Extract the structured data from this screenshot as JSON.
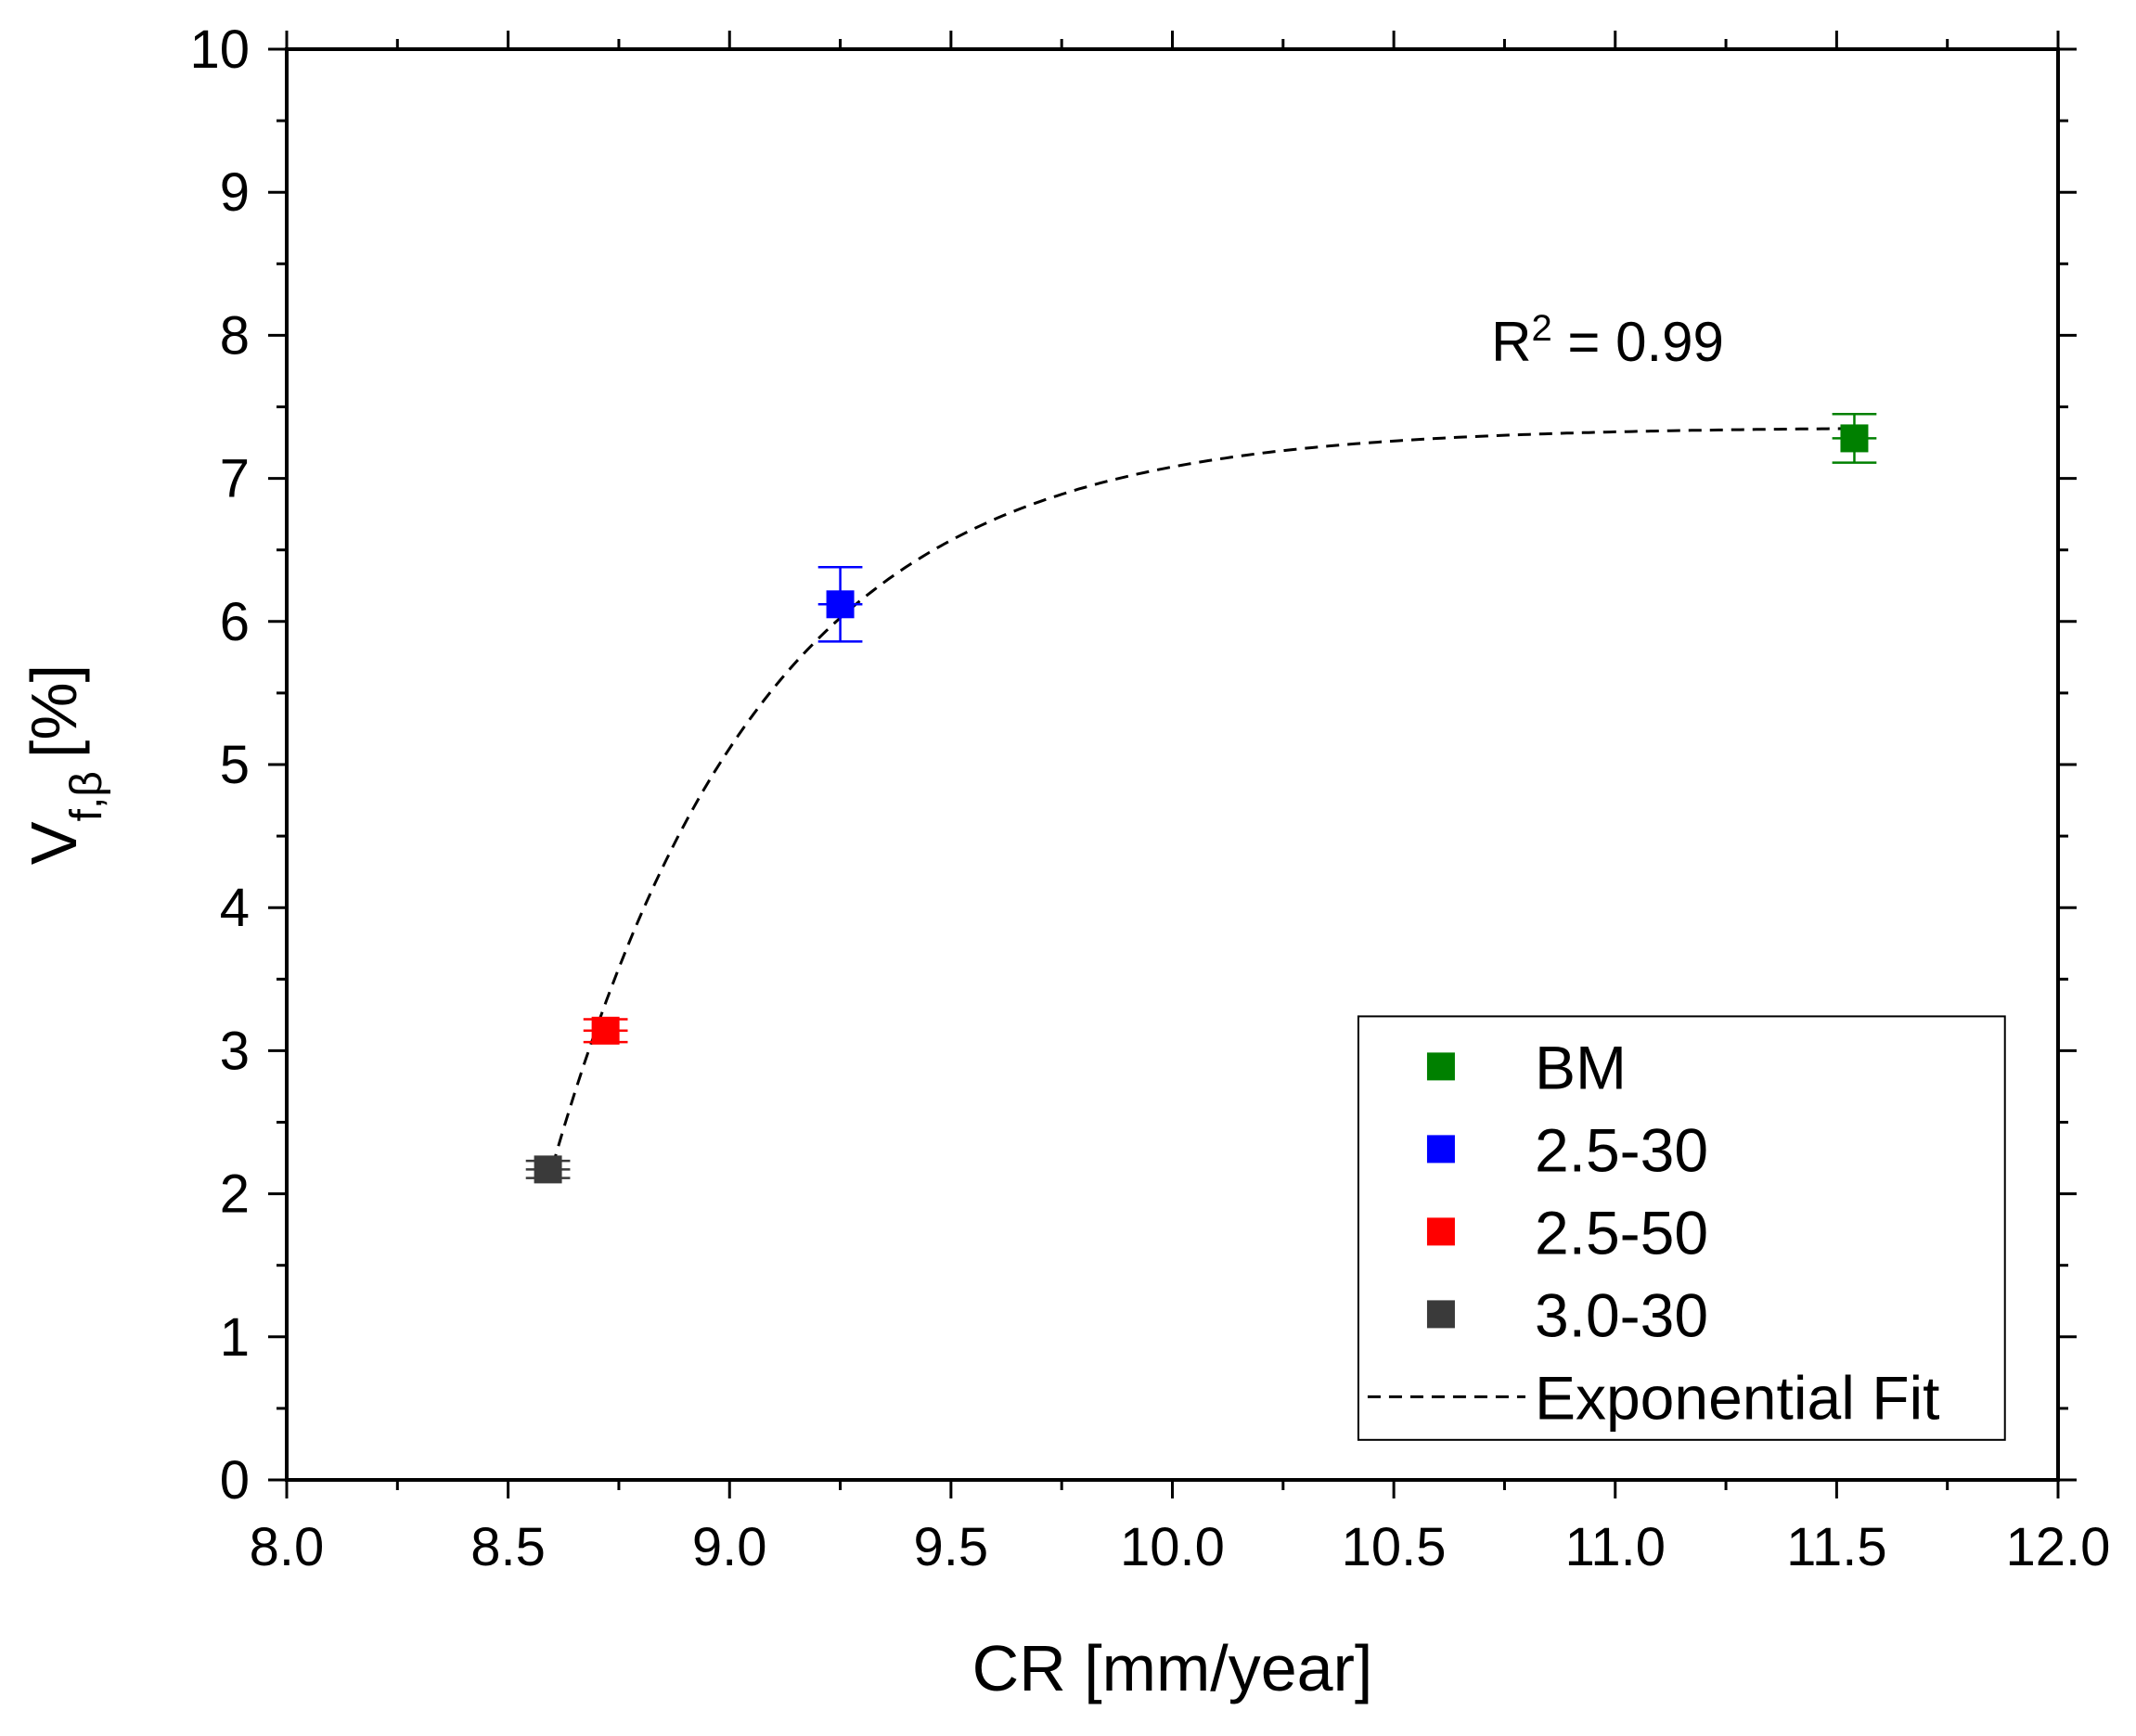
{
  "chart_data": {
    "type": "scatter",
    "title": "",
    "xlabel": "CR [mm/year]",
    "ylabel": {
      "main": "V",
      "subscript": "f,β",
      "unit": "[%]"
    },
    "xlim": [
      8.0,
      12.0
    ],
    "ylim": [
      0,
      10
    ],
    "x_ticks": [
      8.0,
      8.5,
      9.0,
      9.5,
      10.0,
      10.5,
      11.0,
      11.5,
      12.0
    ],
    "x_tick_labels": [
      "8.0",
      "8.5",
      "9.0",
      "9.5",
      "10.0",
      "10.5",
      "11.0",
      "11.5",
      "12.0"
    ],
    "y_ticks": [
      0,
      1,
      2,
      3,
      4,
      5,
      6,
      7,
      8,
      9,
      10
    ],
    "y_tick_labels": [
      "0",
      "1",
      "2",
      "3",
      "4",
      "5",
      "6",
      "7",
      "8",
      "9",
      "10"
    ],
    "grid": false,
    "legend_position": "bottom-right",
    "series": [
      {
        "name": "BM",
        "color": "#008000",
        "x": 11.54,
        "y": 7.28,
        "yerr": 0.17,
        "xerr": 0.05
      },
      {
        "name": "2.5-30",
        "color": "#0000ff",
        "x": 9.25,
        "y": 6.12,
        "yerr": 0.26,
        "xerr": 0.05
      },
      {
        "name": "2.5-50",
        "color": "#ff0000",
        "x": 8.72,
        "y": 3.14,
        "yerr": 0.08,
        "xerr": 0.05
      },
      {
        "name": "3.0-30",
        "color": "#3a3a3a",
        "x": 8.59,
        "y": 2.17,
        "yerr": 0.06,
        "xerr": 0.05
      }
    ],
    "fit": {
      "name": "Exponential Fit",
      "model": "y = A - B*exp(-(x - x0)/t)",
      "A": 7.36,
      "B": 5.17,
      "x0": 8.6,
      "t": 0.48,
      "x_range": [
        8.6,
        11.54
      ],
      "r2_label": "R",
      "r2_power": "2",
      "r2_value": " = 0.99"
    }
  }
}
